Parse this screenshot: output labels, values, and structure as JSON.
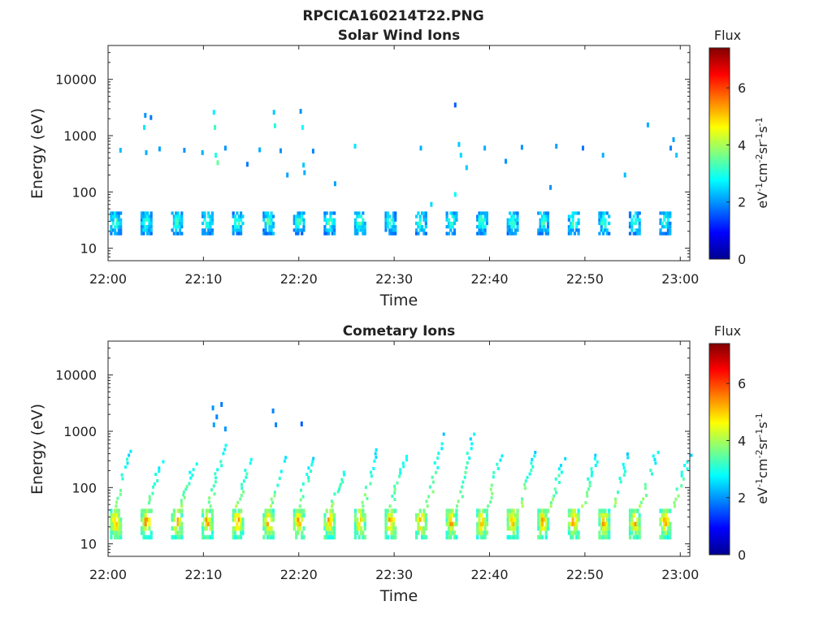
{
  "figure_title": "RPCICA160214T22.PNG",
  "chart_data": [
    {
      "type": "heatmap",
      "title": "Solar Wind Ions",
      "xlabel": "Time",
      "ylabel": "Energy (eV)",
      "x_ticks": [
        "22:00",
        "22:10",
        "22:20",
        "22:30",
        "22:40",
        "22:50",
        "23:00"
      ],
      "y_ticks": [
        "10",
        "100",
        "1000",
        "10000"
      ],
      "y_scale": "log",
      "ylim": [
        6,
        40000
      ],
      "xlim_minutes": [
        0,
        61
      ],
      "colorbar": {
        "title": "Flux",
        "unit": "eV-1cm-2sr-1s-1",
        "ticks": [
          "0",
          "2",
          "4",
          "6"
        ],
        "range": [
          0,
          7.4
        ],
        "colormap": "jet"
      },
      "scan_period_minutes": 3.2,
      "bands": [
        {
          "e_low": 17,
          "e_high": 45,
          "flux": 3.6,
          "note": "periodic solar wind proton bursts"
        }
      ],
      "sparse_points": [
        {
          "t": 1.3,
          "e": 550,
          "f": 2.3
        },
        {
          "t": 3.9,
          "e": 2300,
          "f": 2.0
        },
        {
          "t": 3.8,
          "e": 1400,
          "f": 2.6
        },
        {
          "t": 4.0,
          "e": 500,
          "f": 2.2
        },
        {
          "t": 4.5,
          "e": 2100,
          "f": 1.8
        },
        {
          "t": 5.4,
          "e": 580,
          "f": 2.1
        },
        {
          "t": 8.0,
          "e": 550,
          "f": 2.0
        },
        {
          "t": 9.9,
          "e": 500,
          "f": 2.2
        },
        {
          "t": 11.1,
          "e": 2600,
          "f": 2.7
        },
        {
          "t": 11.2,
          "e": 1400,
          "f": 3.2
        },
        {
          "t": 11.3,
          "e": 450,
          "f": 3.0
        },
        {
          "t": 11.5,
          "e": 330,
          "f": 3.5
        },
        {
          "t": 12.3,
          "e": 600,
          "f": 2.0
        },
        {
          "t": 14.6,
          "e": 310,
          "f": 1.8
        },
        {
          "t": 15.9,
          "e": 560,
          "f": 2.2
        },
        {
          "t": 17.4,
          "e": 2600,
          "f": 2.4
        },
        {
          "t": 17.5,
          "e": 1500,
          "f": 3.0
        },
        {
          "t": 18.1,
          "e": 540,
          "f": 2.0
        },
        {
          "t": 18.8,
          "e": 200,
          "f": 2.1
        },
        {
          "t": 20.2,
          "e": 2700,
          "f": 2.0
        },
        {
          "t": 20.4,
          "e": 1400,
          "f": 2.8
        },
        {
          "t": 20.5,
          "e": 300,
          "f": 2.4
        },
        {
          "t": 20.6,
          "e": 220,
          "f": 2.2
        },
        {
          "t": 21.5,
          "e": 530,
          "f": 1.9
        },
        {
          "t": 23.8,
          "e": 140,
          "f": 2.1
        },
        {
          "t": 25.9,
          "e": 650,
          "f": 2.6
        },
        {
          "t": 32.8,
          "e": 600,
          "f": 2.2
        },
        {
          "t": 33.9,
          "e": 60,
          "f": 2.5
        },
        {
          "t": 36.4,
          "e": 3500,
          "f": 1.6
        },
        {
          "t": 36.8,
          "e": 700,
          "f": 2.4
        },
        {
          "t": 37.0,
          "e": 450,
          "f": 2.5
        },
        {
          "t": 37.6,
          "e": 270,
          "f": 2.4
        },
        {
          "t": 36.4,
          "e": 90,
          "f": 2.8
        },
        {
          "t": 39.5,
          "e": 600,
          "f": 2.2
        },
        {
          "t": 41.7,
          "e": 350,
          "f": 2.0
        },
        {
          "t": 43.4,
          "e": 620,
          "f": 2.0
        },
        {
          "t": 46.4,
          "e": 120,
          "f": 2.0
        },
        {
          "t": 47.0,
          "e": 650,
          "f": 2.1
        },
        {
          "t": 49.8,
          "e": 600,
          "f": 1.8
        },
        {
          "t": 51.9,
          "e": 450,
          "f": 2.2
        },
        {
          "t": 54.2,
          "e": 200,
          "f": 2.3
        },
        {
          "t": 56.6,
          "e": 1550,
          "f": 2.2
        },
        {
          "t": 59.3,
          "e": 850,
          "f": 2.1
        },
        {
          "t": 59.0,
          "e": 600,
          "f": 1.9
        },
        {
          "t": 59.6,
          "e": 450,
          "f": 2.4
        }
      ]
    },
    {
      "type": "heatmap",
      "title": "Cometary Ions",
      "xlabel": "Time",
      "ylabel": "Energy (eV)",
      "x_ticks": [
        "22:00",
        "22:10",
        "22:20",
        "22:30",
        "22:40",
        "22:50",
        "23:00"
      ],
      "y_ticks": [
        "10",
        "100",
        "1000",
        "10000"
      ],
      "y_scale": "log",
      "ylim": [
        6,
        40000
      ],
      "xlim_minutes": [
        0,
        61
      ],
      "colorbar": {
        "title": "Flux",
        "unit": "eV-1cm-2sr-1s-1",
        "ticks": [
          "0",
          "2",
          "4",
          "6"
        ],
        "range": [
          0,
          7.4
        ],
        "colormap": "jet"
      },
      "scan_period_minutes": 3.2,
      "bands": [
        {
          "e_low": 12,
          "e_high": 42,
          "flux": 5.8,
          "note": "periodic cometary ion bursts"
        }
      ],
      "rising_traces": [
        {
          "t0": 1.5,
          "e_max": 550
        },
        {
          "t0": 4.8,
          "e_max": 350
        },
        {
          "t0": 8.2,
          "e_max": 280
        },
        {
          "t0": 11.3,
          "e_max": 600
        },
        {
          "t0": 14.2,
          "e_max": 450
        },
        {
          "t0": 17.6,
          "e_max": 420
        },
        {
          "t0": 20.6,
          "e_max": 350
        },
        {
          "t0": 24.0,
          "e_max": 220
        },
        {
          "t0": 27.4,
          "e_max": 500
        },
        {
          "t0": 30.3,
          "e_max": 380
        },
        {
          "t0": 34.2,
          "e_max": 950
        },
        {
          "t0": 37.4,
          "e_max": 950
        },
        {
          "t0": 40.5,
          "e_max": 650
        },
        {
          "t0": 43.9,
          "e_max": 450
        },
        {
          "t0": 47.0,
          "e_max": 400
        },
        {
          "t0": 50.4,
          "e_max": 400
        },
        {
          "t0": 53.6,
          "e_max": 420
        },
        {
          "t0": 56.6,
          "e_max": 450
        },
        {
          "t0": 60.0,
          "e_max": 400
        }
      ],
      "sparse_points": [
        {
          "t": 11.0,
          "e": 2600,
          "f": 2.0
        },
        {
          "t": 11.9,
          "e": 3000,
          "f": 1.8
        },
        {
          "t": 11.4,
          "e": 1800,
          "f": 1.9
        },
        {
          "t": 11.1,
          "e": 1300,
          "f": 2.1
        },
        {
          "t": 12.3,
          "e": 1100,
          "f": 2.0
        },
        {
          "t": 17.3,
          "e": 2300,
          "f": 1.9
        },
        {
          "t": 17.6,
          "e": 1300,
          "f": 1.9
        },
        {
          "t": 20.3,
          "e": 1350,
          "f": 1.6
        }
      ]
    }
  ]
}
